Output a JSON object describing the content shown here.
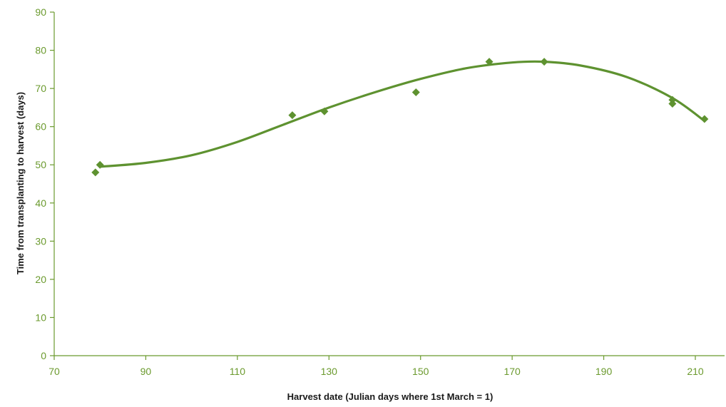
{
  "chart_data": {
    "type": "scatter",
    "title": "",
    "xlabel": "Harvest date (Julian days where 1st March = 1)",
    "ylabel": "Time from transplanting to harvest (days)",
    "xlim": [
      70,
      210
    ],
    "ylim": [
      0,
      90
    ],
    "x_ticks": [
      70,
      90,
      110,
      130,
      150,
      170,
      190,
      210
    ],
    "y_ticks": [
      0,
      10,
      20,
      30,
      40,
      50,
      60,
      70,
      80,
      90
    ],
    "grid": false,
    "legend": "none",
    "series": [
      {
        "marker": "diamond",
        "points": [
          {
            "x": 79,
            "y": 48
          },
          {
            "x": 80,
            "y": 50
          },
          {
            "x": 122,
            "y": 63
          },
          {
            "x": 129,
            "y": 64
          },
          {
            "x": 149,
            "y": 69
          },
          {
            "x": 165,
            "y": 77
          },
          {
            "x": 177,
            "y": 77
          },
          {
            "x": 205,
            "y": 67
          },
          {
            "x": 205,
            "y": 66
          },
          {
            "x": 212,
            "y": 62
          }
        ]
      }
    ],
    "trendline": {
      "type": "polynomial",
      "x_range": [
        80,
        212
      ],
      "points": [
        {
          "x": 80,
          "y": 49.5
        },
        {
          "x": 90,
          "y": 50.5
        },
        {
          "x": 100,
          "y": 52.5
        },
        {
          "x": 110,
          "y": 56
        },
        {
          "x": 120,
          "y": 60.5
        },
        {
          "x": 130,
          "y": 65
        },
        {
          "x": 140,
          "y": 69
        },
        {
          "x": 150,
          "y": 72.5
        },
        {
          "x": 160,
          "y": 75.3
        },
        {
          "x": 170,
          "y": 76.8
        },
        {
          "x": 177,
          "y": 77
        },
        {
          "x": 185,
          "y": 76
        },
        {
          "x": 195,
          "y": 73
        },
        {
          "x": 205,
          "y": 67.5
        },
        {
          "x": 212,
          "y": 61.5
        }
      ]
    },
    "colors": {
      "axis": "#6b9a2e",
      "tick_label": "#6b9a2e",
      "marker": "#5e9230",
      "trendline": "#5e9230",
      "axis_title": "#1a1a1a"
    }
  }
}
